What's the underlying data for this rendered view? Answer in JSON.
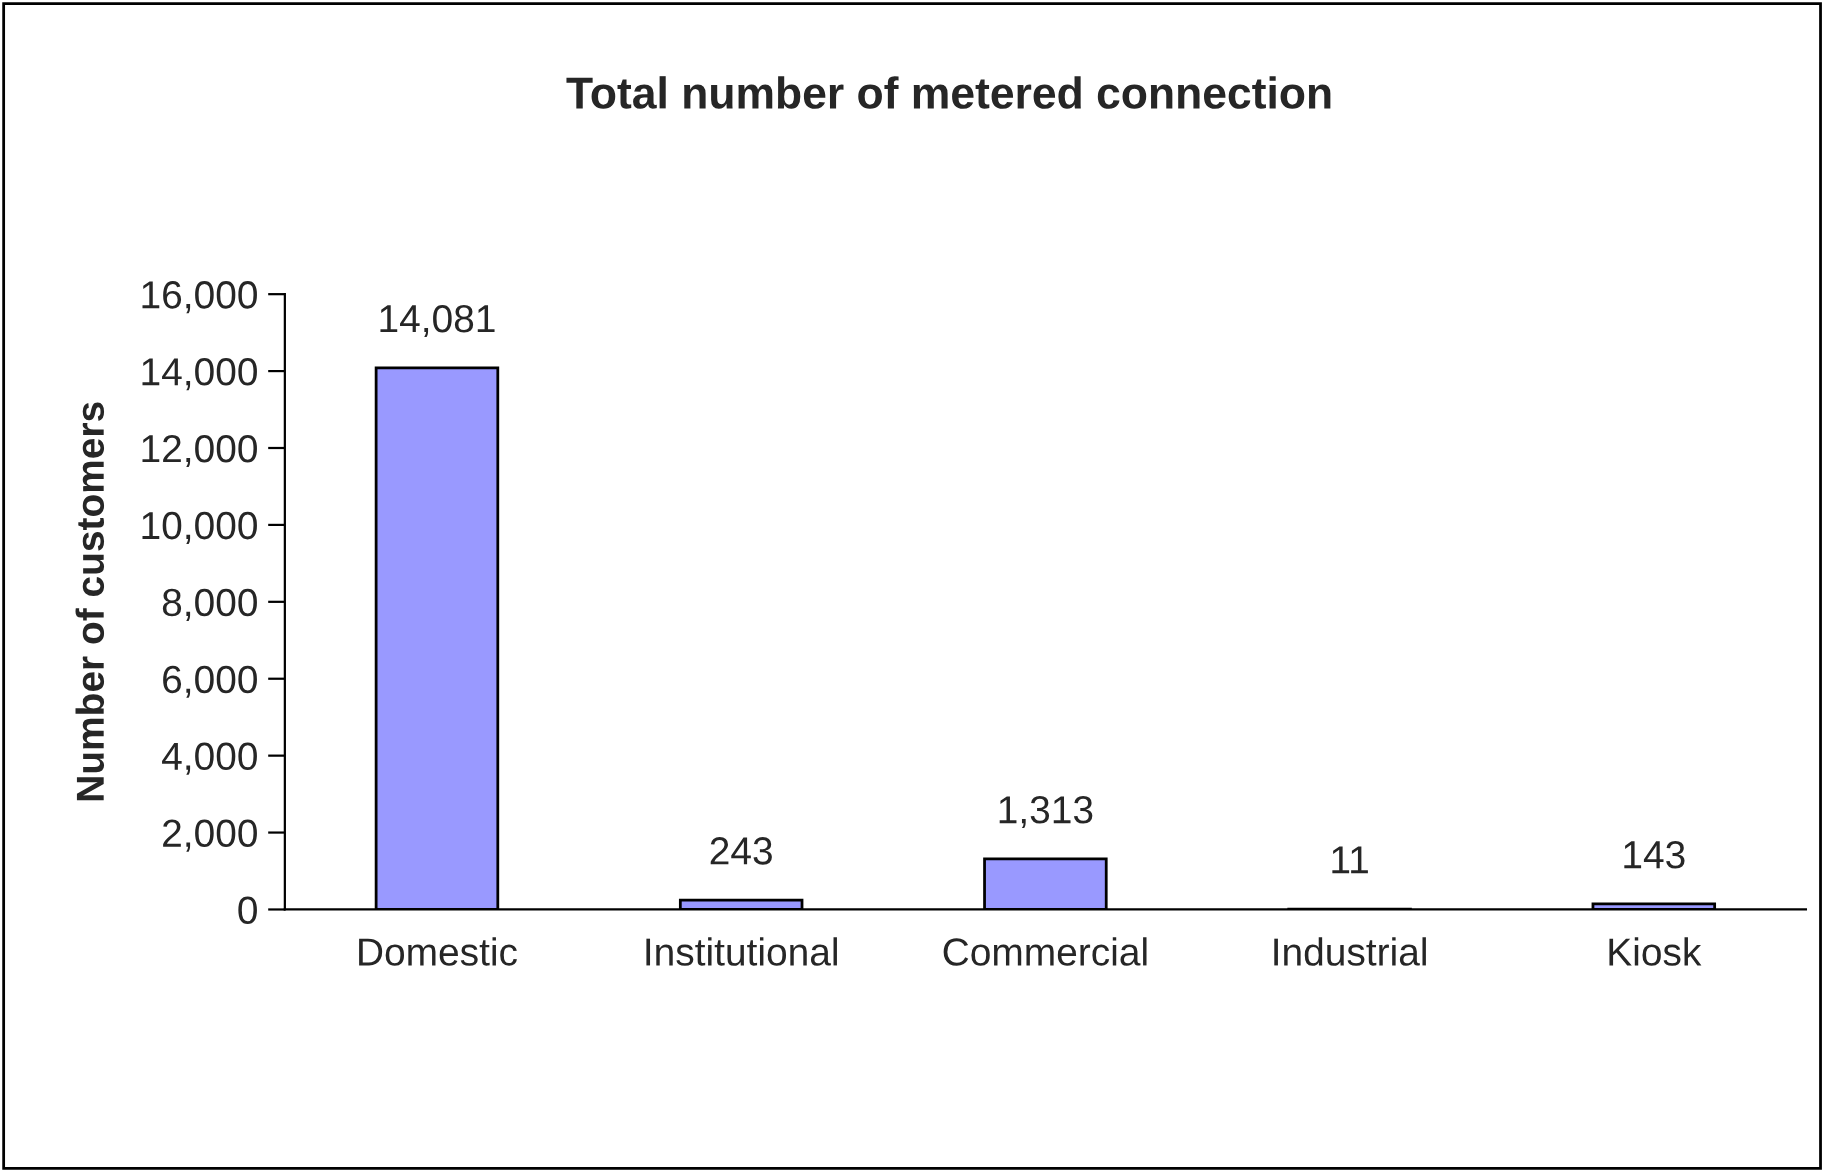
{
  "chart_data": {
    "type": "bar",
    "title": "Total number of metered connection",
    "ylabel": "Number of customers",
    "categories": [
      "Domestic",
      "Institutional",
      "Commercial",
      "Industrial",
      "Kiosk"
    ],
    "values": [
      14081,
      243,
      1313,
      11,
      143
    ],
    "value_labels": [
      "14,081",
      "243",
      "1,313",
      "11",
      "143"
    ],
    "color": "#9999ff",
    "ylim": [
      0,
      16000
    ],
    "yticks": [
      {
        "value": 0,
        "label": "0"
      },
      {
        "value": 2000,
        "label": "2,000"
      },
      {
        "value": 4000,
        "label": "4,000"
      },
      {
        "value": 6000,
        "label": "6,000"
      },
      {
        "value": 8000,
        "label": "8,000"
      },
      {
        "value": 10000,
        "label": "10,000"
      },
      {
        "value": 12000,
        "label": "12,000"
      },
      {
        "value": 14000,
        "label": "14,000"
      },
      {
        "value": 16000,
        "label": "16,000"
      }
    ],
    "grid": false,
    "legend": false
  }
}
